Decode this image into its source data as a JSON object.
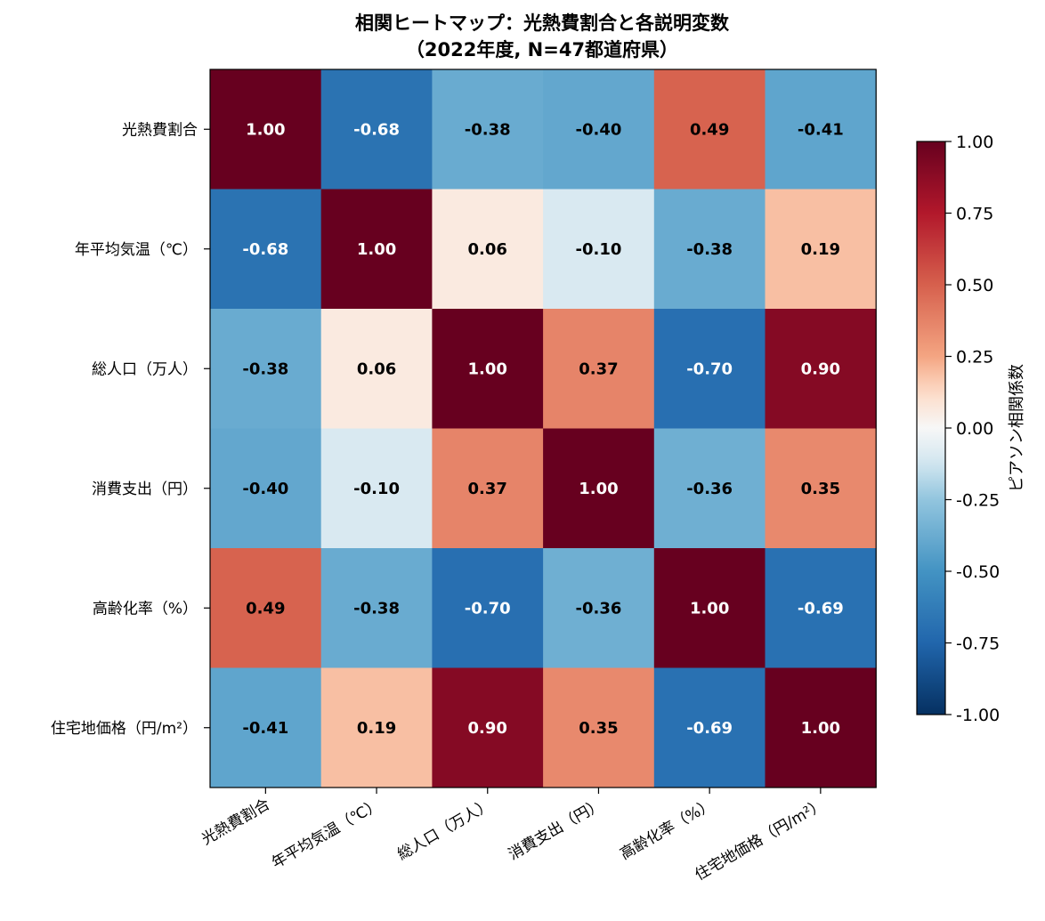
{
  "chart_data": {
    "type": "heatmap",
    "title": "相関ヒートマップ：光熱費割合と各説明変数",
    "subtitle": "（2022年度, N=47都道府県）",
    "labels": [
      "光熱費割合",
      "年平均気温（℃）",
      "総人口（万人）",
      "消費支出（円）",
      "高齢化率（%）",
      "住宅地価格（円/m²）"
    ],
    "matrix": [
      [
        1.0,
        -0.68,
        -0.38,
        -0.4,
        0.49,
        -0.41
      ],
      [
        -0.68,
        1.0,
        0.06,
        -0.1,
        -0.38,
        0.19
      ],
      [
        -0.38,
        0.06,
        1.0,
        0.37,
        -0.7,
        0.9
      ],
      [
        -0.4,
        -0.1,
        0.37,
        1.0,
        -0.36,
        0.35
      ],
      [
        0.49,
        -0.38,
        -0.7,
        -0.36,
        1.0,
        -0.69
      ],
      [
        -0.41,
        0.19,
        0.9,
        0.35,
        -0.69,
        1.0
      ]
    ],
    "cell_text": [
      [
        "1.00",
        "-0.68",
        "-0.38",
        "-0.40",
        "0.49",
        "-0.41"
      ],
      [
        "-0.68",
        "1.00",
        "0.06",
        "-0.10",
        "-0.38",
        "0.19"
      ],
      [
        "-0.38",
        "0.06",
        "1.00",
        "0.37",
        "-0.70",
        "0.90"
      ],
      [
        "-0.40",
        "-0.10",
        "0.37",
        "1.00",
        "-0.36",
        "0.35"
      ],
      [
        "0.49",
        "-0.38",
        "-0.70",
        "-0.36",
        "1.00",
        "-0.69"
      ],
      [
        "-0.41",
        "0.19",
        "0.90",
        "0.35",
        "-0.69",
        "1.00"
      ]
    ],
    "colormap": "RdBu_r",
    "vmin": -1.0,
    "vmax": 1.0,
    "colorbar": {
      "label": "ピアソン相関係数",
      "ticks": [
        "1.00",
        "0.75",
        "0.50",
        "0.25",
        "0.00",
        "-0.25",
        "-0.50",
        "-0.75",
        "-1.00"
      ],
      "tick_values": [
        1.0,
        0.75,
        0.5,
        0.25,
        0.0,
        -0.25,
        -0.5,
        -0.75,
        -1.0
      ]
    },
    "grid": false
  }
}
